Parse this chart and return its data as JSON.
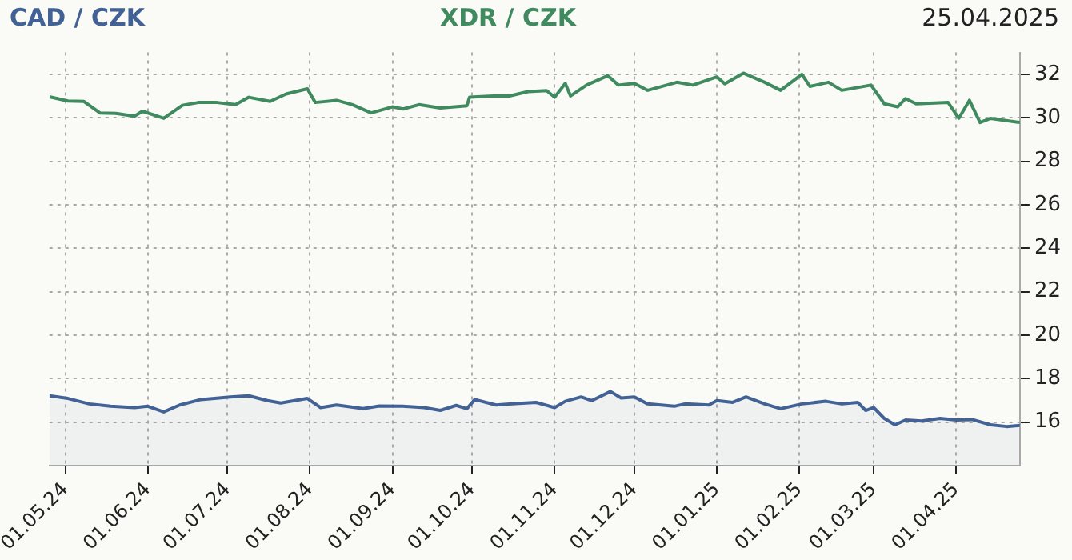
{
  "chart_data": {
    "type": "line",
    "title": "25.04.2025",
    "legend": "top",
    "grid": true,
    "xlim": [
      "2024-04-25",
      "2025-04-25"
    ],
    "xticks": [
      {
        "value": "2024-05-01",
        "label": "01.05.24"
      },
      {
        "value": "2024-06-01",
        "label": "01.06.24"
      },
      {
        "value": "2024-07-01",
        "label": "01.07.24"
      },
      {
        "value": "2024-08-01",
        "label": "01.08.24"
      },
      {
        "value": "2024-09-01",
        "label": "01.09.24"
      },
      {
        "value": "2024-10-01",
        "label": "01.10.24"
      },
      {
        "value": "2024-11-01",
        "label": "01.11.24"
      },
      {
        "value": "2024-12-01",
        "label": "01.12.24"
      },
      {
        "value": "2025-01-01",
        "label": "01.01.25"
      },
      {
        "value": "2025-02-01",
        "label": "01.02.25"
      },
      {
        "value": "2025-03-01",
        "label": "01.03.25"
      },
      {
        "value": "2025-04-01",
        "label": "01.04.25"
      }
    ],
    "ylim": [
      14,
      33
    ],
    "yticks": [
      16,
      18,
      20,
      22,
      24,
      26,
      28,
      30,
      32
    ],
    "series": [
      {
        "name": "CAD / CZK",
        "type": "area",
        "color": "#426296",
        "x": [
          "2024-04-25",
          "2024-05-02",
          "2024-05-10",
          "2024-05-18",
          "2024-05-27",
          "2024-06-01",
          "2024-06-07",
          "2024-06-13",
          "2024-06-21",
          "2024-07-02",
          "2024-07-09",
          "2024-07-16",
          "2024-07-21",
          "2024-07-31",
          "2024-08-05",
          "2024-08-11",
          "2024-08-21",
          "2024-08-27",
          "2024-09-05",
          "2024-09-13",
          "2024-09-19",
          "2024-09-25",
          "2024-09-29",
          "2024-10-02",
          "2024-10-10",
          "2024-10-16",
          "2024-10-25",
          "2024-11-01",
          "2024-11-05",
          "2024-11-11",
          "2024-11-15",
          "2024-11-22",
          "2024-11-26",
          "2024-12-01",
          "2024-12-06",
          "2024-12-16",
          "2024-12-20",
          "2024-12-29",
          "2025-01-01",
          "2025-01-07",
          "2025-01-12",
          "2025-01-19",
          "2025-01-25",
          "2025-02-02",
          "2025-02-11",
          "2025-02-17",
          "2025-02-23",
          "2025-02-26",
          "2025-03-01",
          "2025-03-05",
          "2025-03-09",
          "2025-03-13",
          "2025-03-19",
          "2025-03-26",
          "2025-04-01",
          "2025-04-07",
          "2025-04-14",
          "2025-04-20",
          "2025-04-25"
        ],
        "values": [
          17.21,
          17.09,
          16.84,
          16.73,
          16.67,
          16.73,
          16.47,
          16.79,
          17.04,
          17.16,
          17.21,
          16.99,
          16.88,
          17.09,
          16.67,
          16.79,
          16.62,
          16.74,
          16.73,
          16.67,
          16.54,
          16.77,
          16.62,
          17.04,
          16.79,
          16.84,
          16.91,
          16.67,
          16.96,
          17.16,
          16.99,
          17.41,
          17.11,
          17.16,
          16.84,
          16.73,
          16.84,
          16.79,
          16.99,
          16.91,
          17.16,
          16.84,
          16.62,
          16.84,
          16.96,
          16.84,
          16.91,
          16.54,
          16.67,
          16.17,
          15.88,
          16.1,
          16.05,
          16.17,
          16.1,
          16.12,
          15.88,
          15.8,
          15.85
        ]
      },
      {
        "name": "XDR / CZK",
        "type": "line",
        "color": "#3f8a5e",
        "x": [
          "2024-04-25",
          "2024-05-02",
          "2024-05-08",
          "2024-05-14",
          "2024-05-20",
          "2024-05-27",
          "2024-05-30",
          "2024-06-07",
          "2024-06-14",
          "2024-06-20",
          "2024-06-27",
          "2024-07-04",
          "2024-07-09",
          "2024-07-17",
          "2024-07-23",
          "2024-07-31",
          "2024-08-03",
          "2024-08-11",
          "2024-08-17",
          "2024-08-24",
          "2024-09-01",
          "2024-09-05",
          "2024-09-11",
          "2024-09-19",
          "2024-09-29",
          "2024-09-30",
          "2024-10-09",
          "2024-10-15",
          "2024-10-22",
          "2024-10-29",
          "2024-11-01",
          "2024-11-05",
          "2024-11-07",
          "2024-11-13",
          "2024-11-21",
          "2024-11-25",
          "2024-12-01",
          "2024-12-06",
          "2024-12-17",
          "2024-12-23",
          "2025-01-01",
          "2025-01-04",
          "2025-01-11",
          "2025-01-19",
          "2025-01-25",
          "2025-02-02",
          "2025-02-05",
          "2025-02-12",
          "2025-02-17",
          "2025-02-28",
          "2025-03-05",
          "2025-03-10",
          "2025-03-13",
          "2025-03-17",
          "2025-03-29",
          "2025-04-02",
          "2025-04-06",
          "2025-04-10",
          "2025-04-14",
          "2025-04-25"
        ],
        "values": [
          30.96,
          30.77,
          30.75,
          30.22,
          30.2,
          30.07,
          30.3,
          29.97,
          30.57,
          30.7,
          30.7,
          30.6,
          30.94,
          30.75,
          31.09,
          31.33,
          30.7,
          30.8,
          30.6,
          30.22,
          30.5,
          30.4,
          30.6,
          30.45,
          30.55,
          30.94,
          31.0,
          31.0,
          31.2,
          31.25,
          30.94,
          31.58,
          31.0,
          31.5,
          31.93,
          31.5,
          31.58,
          31.26,
          31.63,
          31.5,
          31.88,
          31.56,
          32.05,
          31.63,
          31.26,
          32.0,
          31.44,
          31.63,
          31.26,
          31.5,
          30.64,
          30.5,
          30.88,
          30.64,
          30.7,
          29.97,
          30.8,
          29.78,
          29.97,
          29.78
        ]
      }
    ]
  }
}
